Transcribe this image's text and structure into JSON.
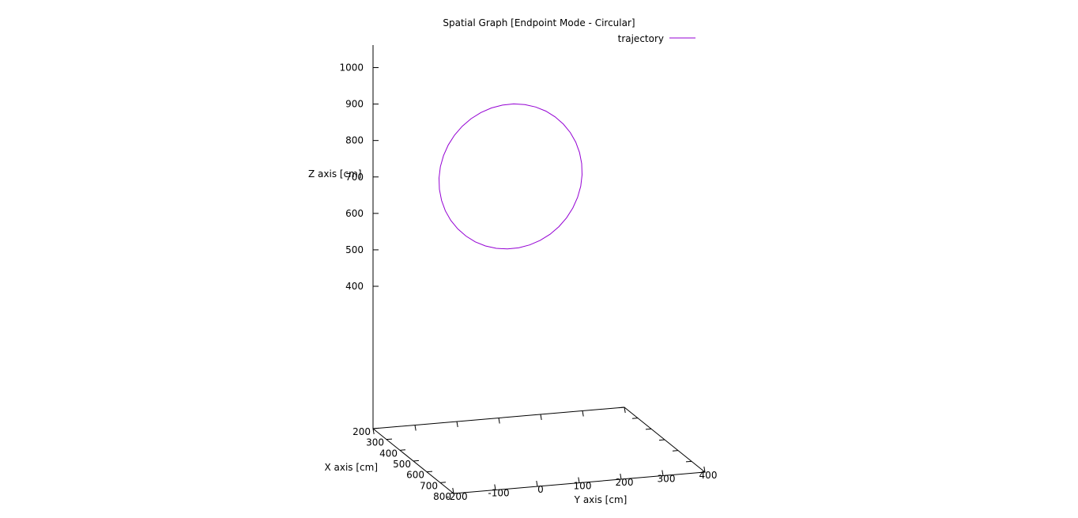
{
  "chart_data": {
    "type": "line",
    "projection": "3d",
    "title": "Spatial Graph [Endpoint Mode - Circular]",
    "xlabel": "X axis [cm]",
    "ylabel": "Y axis [cm]",
    "zlabel": "Z axis [cm]",
    "xlim": [
      200,
      800
    ],
    "ylim": [
      -200,
      400
    ],
    "zlim": [
      400,
      1000
    ],
    "x_ticks": [
      "200",
      "300",
      "400",
      "500",
      "600",
      "700",
      "800"
    ],
    "y_ticks": [
      "-200",
      "-100",
      "0",
      "100",
      "200",
      "300",
      "400"
    ],
    "z_ticks": [
      "400",
      "500",
      "600",
      "700",
      "800",
      "900",
      "1000"
    ],
    "grid": false,
    "legend": "top-right",
    "series": [
      {
        "name": "trajectory",
        "color": "#9400d3",
        "shape": "circle",
        "center": {
          "x": 500,
          "y": 100,
          "z": 710
        },
        "radius": 200
      }
    ]
  }
}
